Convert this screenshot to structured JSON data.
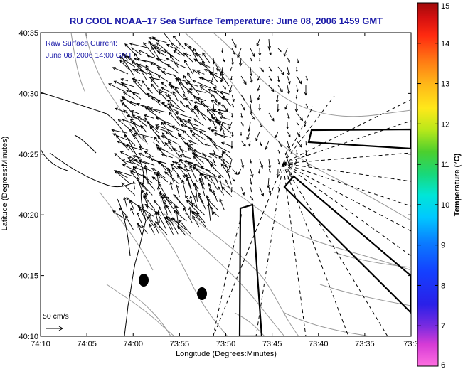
{
  "title": "RU COOL  NOAA–17  Sea Surface Temperature:  June 08, 2006 1459 GMT",
  "annotation": {
    "line1": "Raw Surface Current:",
    "line2": "June 08, 2006 14:00 GMT"
  },
  "scale_label": "50 cm/s",
  "axes": {
    "xlabel": "Longitude (Degrees:Minutes)",
    "ylabel": "Latitude (Degrees:Minutes)",
    "x_ticks": [
      "74:10",
      "74:05",
      "74:00",
      "73:55",
      "73:50",
      "73:45",
      "73:40",
      "73:35",
      "73:3"
    ],
    "y_ticks": [
      "40:35",
      "40:30",
      "40:25",
      "40:20",
      "40:15",
      "40:10"
    ]
  },
  "colorbar": {
    "label": "Temperature (°C)",
    "ticks": [
      "15",
      "14",
      "13",
      "12",
      "11",
      "10",
      "9",
      "8",
      "7",
      "6"
    ],
    "range": [
      6,
      15
    ]
  },
  "colors": {
    "title": "#1a1aa8",
    "annotation": "#1a1aa8",
    "land": "#ffffff",
    "bathymetry": "#9a9a9a",
    "coast": "#000000"
  },
  "map_features": {
    "layers": [
      "coastline",
      "bathymetry-contours",
      "current-vectors",
      "shipping-lanes",
      "radar-coverage-rays",
      "buoy-markers"
    ]
  }
}
